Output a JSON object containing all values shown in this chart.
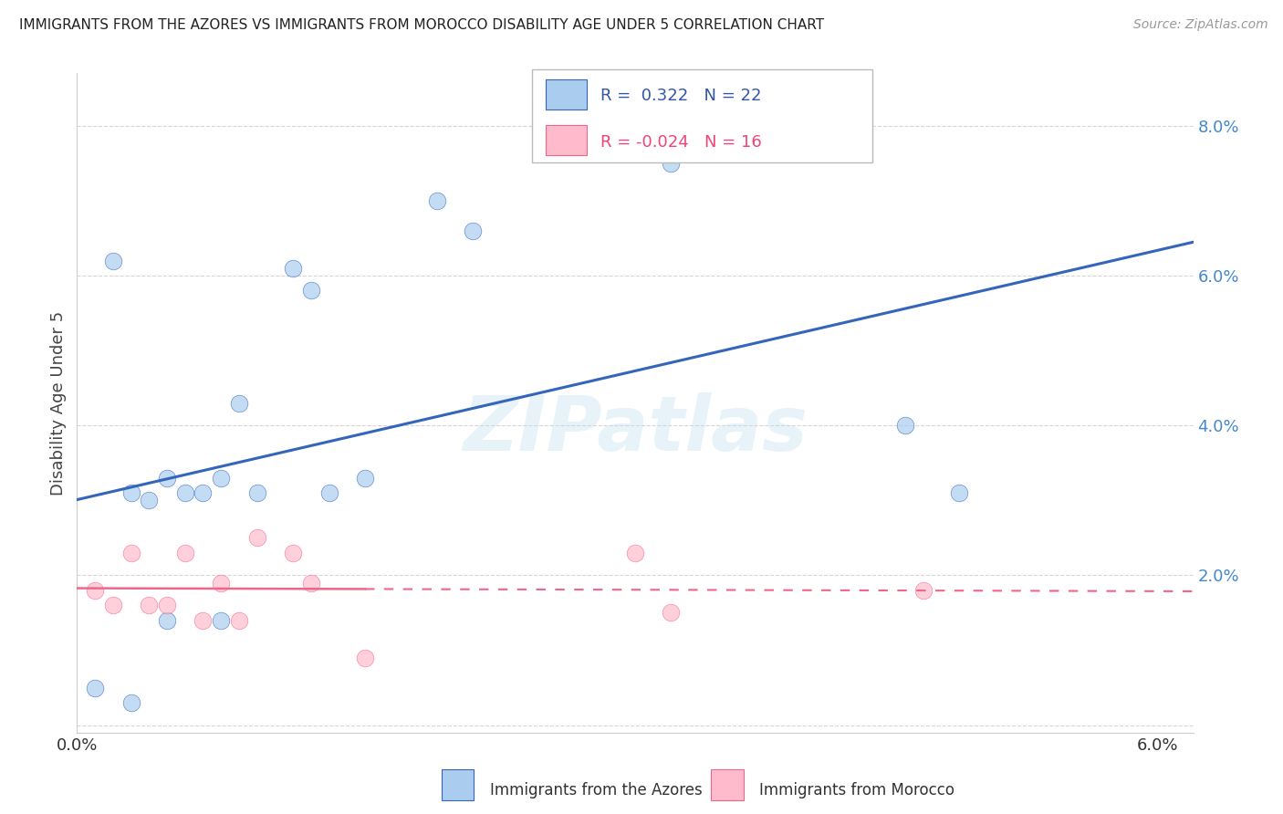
{
  "title": "IMMIGRANTS FROM THE AZORES VS IMMIGRANTS FROM MOROCCO DISABILITY AGE UNDER 5 CORRELATION CHART",
  "source": "Source: ZipAtlas.com",
  "ylabel": "Disability Age Under 5",
  "legend_label1": "Immigrants from the Azores",
  "legend_label2": "Immigrants from Morocco",
  "R1": "0.322",
  "N1": "22",
  "R2": "-0.024",
  "N2": "16",
  "xlim": [
    0.0,
    0.062
  ],
  "ylim": [
    -0.001,
    0.087
  ],
  "yticks": [
    0.0,
    0.02,
    0.04,
    0.06,
    0.08
  ],
  "ytick_labels": [
    "",
    "2.0%",
    "4.0%",
    "6.0%",
    "8.0%"
  ],
  "xticks": [
    0.0,
    0.01,
    0.02,
    0.03,
    0.04,
    0.05,
    0.06
  ],
  "xtick_labels": [
    "0.0%",
    "",
    "",
    "",
    "",
    "",
    "6.0%"
  ],
  "color_azores": "#AACCEE",
  "color_morocco": "#FFBBCC",
  "color_azores_line": "#3366BB",
  "color_morocco_line": "#EE6688",
  "watermark": "ZIPatlas",
  "azores_x": [
    0.001,
    0.002,
    0.003,
    0.003,
    0.004,
    0.005,
    0.005,
    0.006,
    0.007,
    0.008,
    0.008,
    0.009,
    0.01,
    0.012,
    0.013,
    0.014,
    0.016,
    0.02,
    0.022,
    0.033,
    0.046,
    0.049
  ],
  "azores_y": [
    0.005,
    0.062,
    0.031,
    0.003,
    0.03,
    0.033,
    0.014,
    0.031,
    0.031,
    0.033,
    0.014,
    0.043,
    0.031,
    0.061,
    0.058,
    0.031,
    0.033,
    0.07,
    0.066,
    0.075,
    0.04,
    0.031
  ],
  "morocco_x": [
    0.001,
    0.002,
    0.003,
    0.004,
    0.005,
    0.006,
    0.007,
    0.008,
    0.009,
    0.01,
    0.012,
    0.013,
    0.016,
    0.031,
    0.033,
    0.047
  ],
  "morocco_y": [
    0.018,
    0.016,
    0.023,
    0.016,
    0.016,
    0.023,
    0.014,
    0.019,
    0.014,
    0.025,
    0.023,
    0.019,
    0.009,
    0.023,
    0.015,
    0.018
  ],
  "grid_color": "#CCCCCC",
  "grid_yticks": [
    0.0,
    0.02,
    0.04,
    0.06,
    0.08
  ]
}
